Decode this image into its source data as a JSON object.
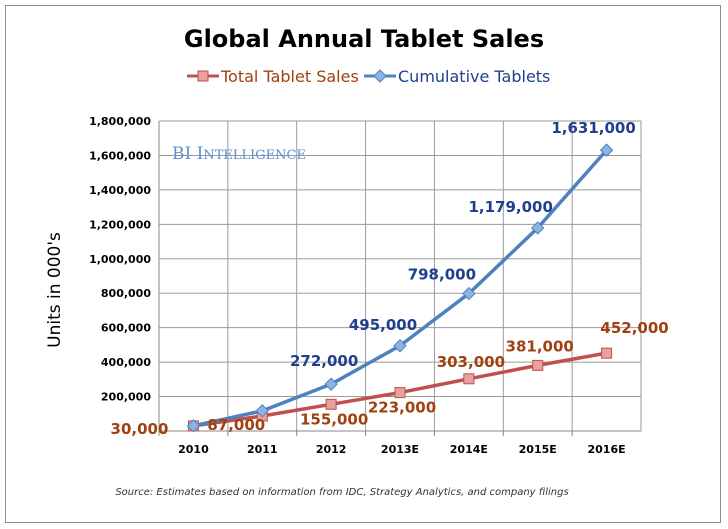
{
  "chart_data": {
    "type": "line",
    "title": "Global Annual Tablet Sales",
    "ylabel": "Units in 000's",
    "xlabel": "",
    "categories": [
      "2010",
      "2011",
      "2012",
      "2013E",
      "2014E",
      "2015E",
      "2016E"
    ],
    "ylim": [
      0,
      1800000
    ],
    "yticks": [
      "200,000",
      "400,000",
      "600,000",
      "800,000",
      "1,000,000",
      "1,200,000",
      "1,400,000",
      "1,600,000",
      "1,800,000"
    ],
    "grid": true,
    "legend_position": "top",
    "series": [
      {
        "name": "Total Tablet Sales",
        "color": "#c0504d",
        "label_color": "#a0410f",
        "marker": "square",
        "values": [
          30000,
          87000,
          155000,
          223000,
          303000,
          381000,
          452000
        ],
        "labels": [
          "30,000",
          "87,000",
          "155,000",
          "223,000",
          "303,000",
          "381,000",
          "452,000"
        ]
      },
      {
        "name": "Cumulative Tablets",
        "color": "#4f81bd",
        "label_color": "#1f3f8f",
        "marker": "diamond",
        "values": [
          30000,
          117000,
          272000,
          495000,
          798000,
          1179000,
          1631000
        ],
        "labels": [
          "",
          "",
          "272,000",
          "495,000",
          "798,000",
          "1,179,000",
          "1,631,000"
        ]
      }
    ],
    "watermark": "BI Intelligence",
    "source": "Source: Estimates based on information from IDC, Strategy Analytics, and company filings"
  }
}
